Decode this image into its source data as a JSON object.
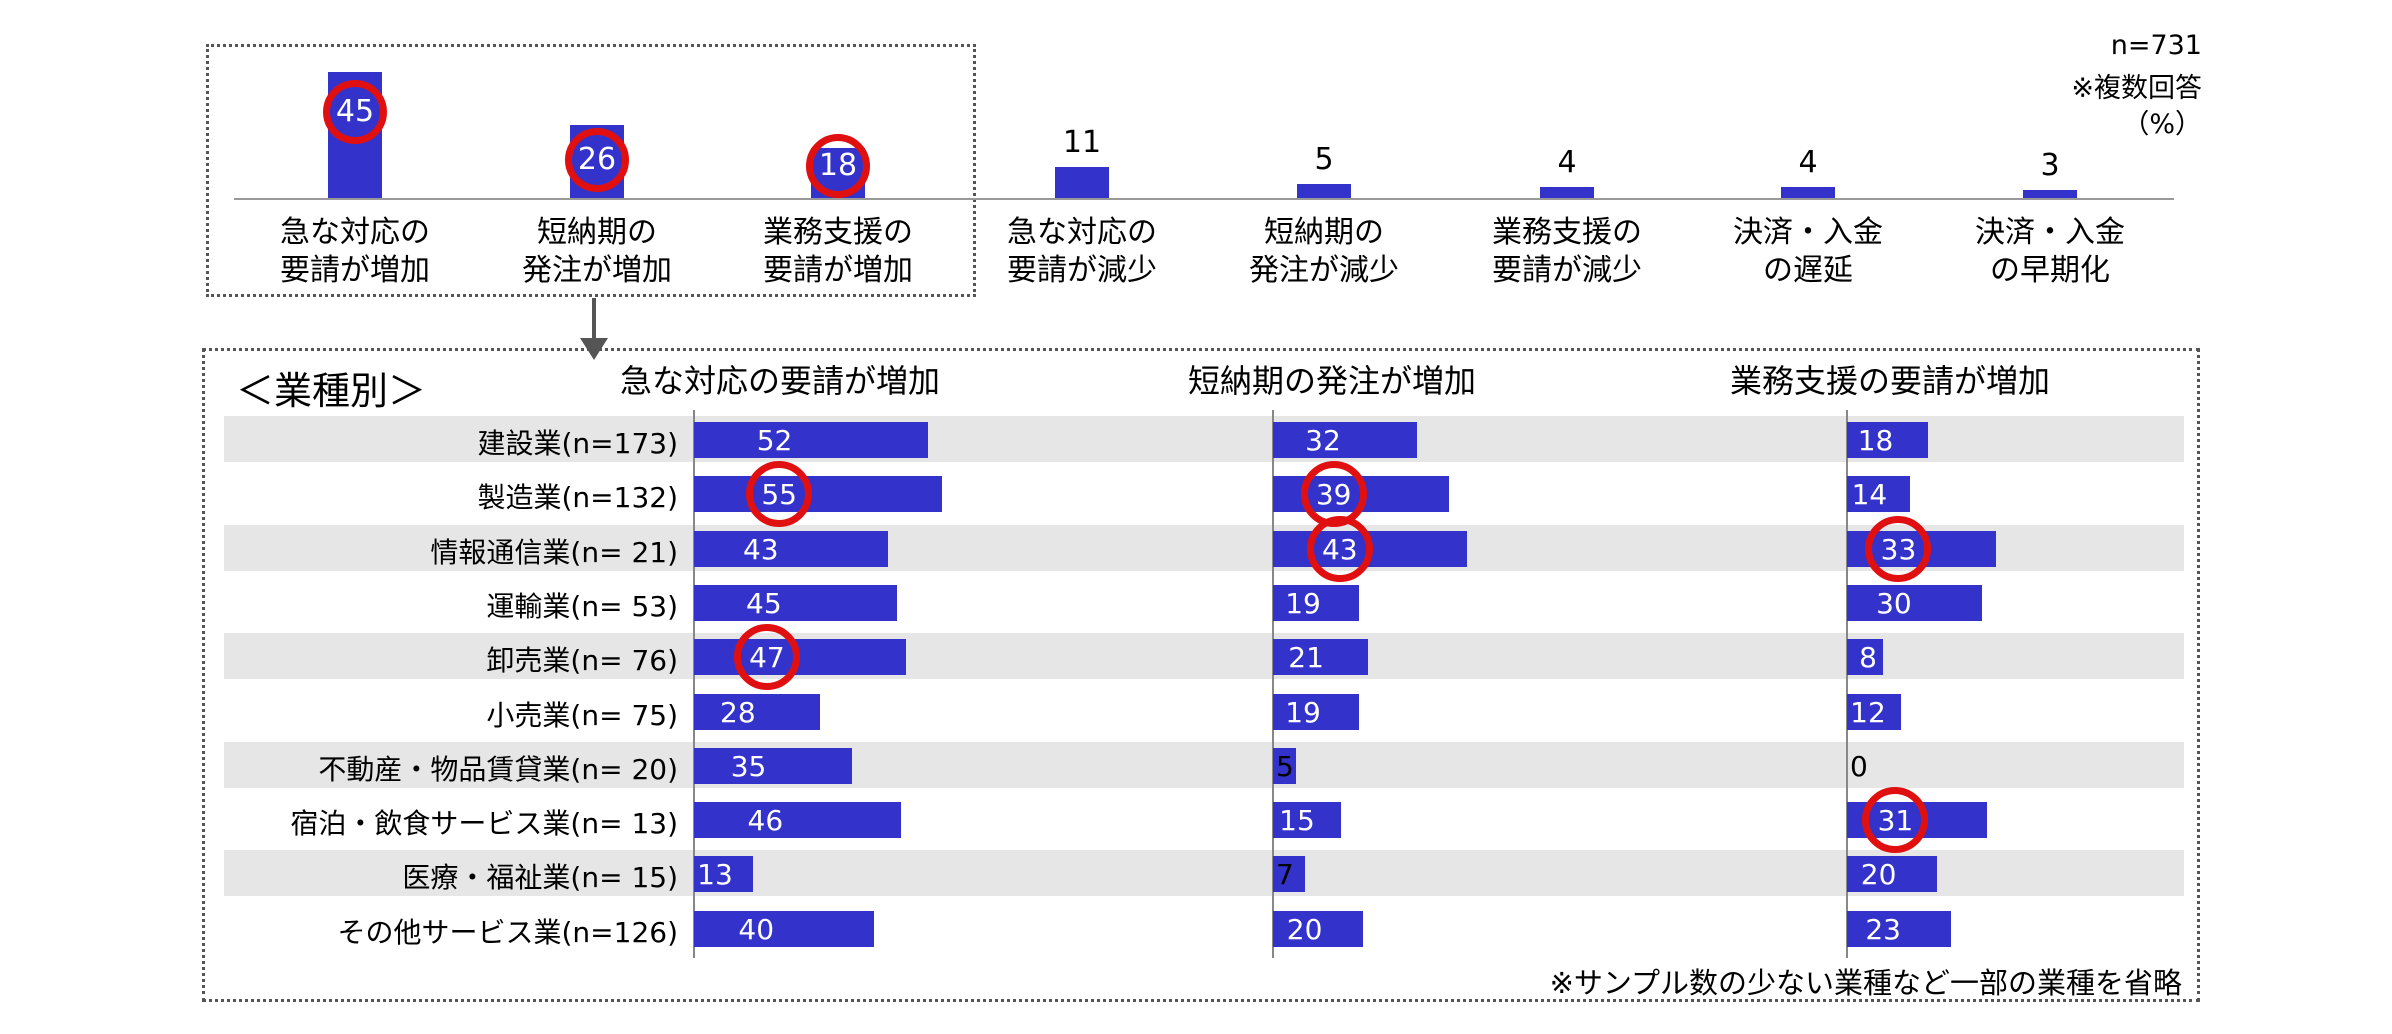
{
  "notes": {
    "n": "n=731",
    "multi": "※複数回答",
    "unit": "（%）"
  },
  "chart_data": [
    {
      "type": "bar",
      "categories": [
        "急な対応の\n要請が増加",
        "短納期の\n発注が増加",
        "業務支援の\n要請が増加",
        "急な対応の\n要請が減少",
        "短納期の\n発注が減少",
        "業務支援の\n要請が減少",
        "決済・入金\nの遅延",
        "決済・入金\nの早期化"
      ],
      "values": [
        45,
        26,
        18,
        11,
        5,
        4,
        4,
        3
      ],
      "highlighted": [
        0,
        1,
        2
      ],
      "ylim": [
        0,
        50
      ]
    },
    {
      "type": "bar",
      "orientation": "horizontal",
      "section_label": "＜業種別＞",
      "categories": [
        "建設業(n=173)",
        "製造業(n=132)",
        "情報通信業(n= 21)",
        "運輸業(n= 53)",
        "卸売業(n= 76)",
        "小売業(n= 75)",
        "不動産・物品賃貸業(n= 20)",
        "宿泊・飲食サービス業(n= 13)",
        "医療・福祉業(n= 15)",
        "その他サービス業(n=126)"
      ],
      "series": [
        {
          "name": "急な対応の要請が増加",
          "values": [
            52,
            55,
            43,
            45,
            47,
            28,
            35,
            46,
            13,
            40
          ],
          "highlighted": [
            1,
            4
          ]
        },
        {
          "name": "短納期の発注が増加",
          "values": [
            32,
            39,
            43,
            19,
            21,
            19,
            5,
            15,
            7,
            20
          ],
          "highlighted": [
            1,
            2
          ]
        },
        {
          "name": "業務支援の要請が増加",
          "values": [
            18,
            14,
            33,
            30,
            8,
            12,
            0,
            31,
            20,
            23
          ],
          "highlighted": [
            2,
            7
          ]
        }
      ],
      "footnote": "※サンプル数の少ない業種など一部の業種を省略"
    }
  ],
  "colors": {
    "bar": "#3333cc",
    "highlight": "#e01010",
    "stripe": "#e6e6e6"
  }
}
